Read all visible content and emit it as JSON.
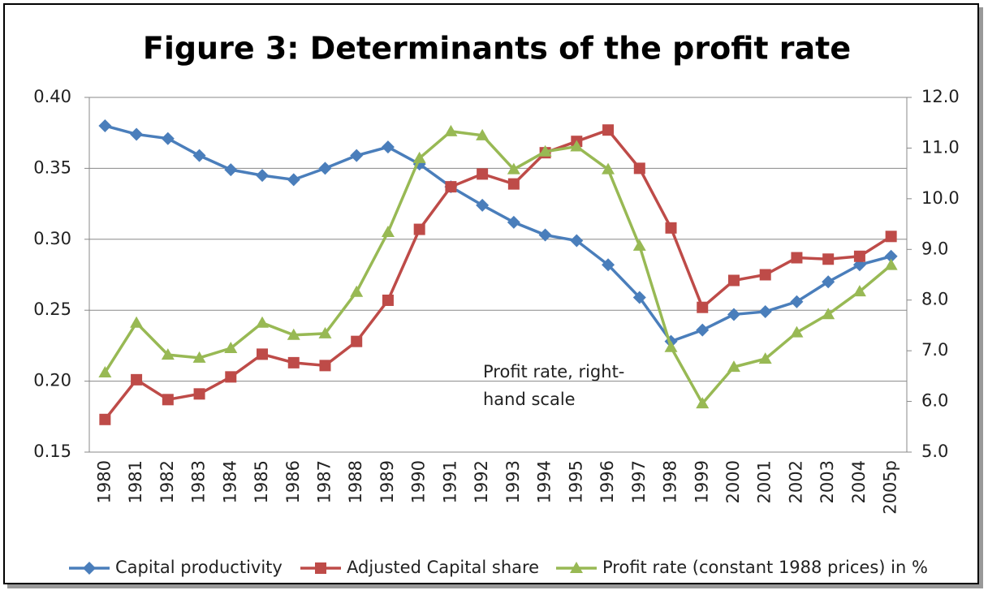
{
  "chart_data": {
    "type": "line",
    "title": "Figure 3: Determinants of the profit rate",
    "categories": [
      "1980",
      "1981",
      "1982",
      "1983",
      "1984",
      "1985",
      "1986",
      "1987",
      "1988",
      "1989",
      "1990",
      "1991",
      "1992",
      "1993",
      "1994",
      "1995",
      "1996",
      "1997",
      "1998",
      "1999",
      "2000",
      "2001",
      "2002",
      "2003",
      "2004",
      "2005p"
    ],
    "series": [
      {
        "name": "Capital productivity",
        "color": "#4a7ebb",
        "marker": "diamond",
        "values": [
          0.38,
          0.374,
          0.371,
          0.359,
          0.349,
          0.345,
          0.342,
          0.35,
          0.359,
          0.365,
          0.353,
          0.337,
          0.324,
          0.312,
          0.303,
          0.299,
          0.282,
          0.259,
          0.228,
          0.236,
          0.247,
          0.249,
          0.256,
          0.27,
          0.282,
          0.288
        ]
      },
      {
        "name": "Adjusted Capital share",
        "color": "#be4b48",
        "marker": "square",
        "values": [
          0.173,
          0.201,
          0.187,
          0.191,
          0.203,
          0.219,
          0.213,
          0.211,
          0.228,
          0.257,
          0.307,
          0.337,
          0.346,
          0.339,
          0.361,
          0.369,
          0.377,
          0.35,
          0.308,
          0.252,
          0.271,
          0.275,
          0.287,
          0.286,
          0.288,
          0.302
        ]
      },
      {
        "name": "Profit rate (constant 1988 prices) in %",
        "color": "#98b954",
        "marker": "triangle",
        "axis": "y2",
        "values": [
          6.57,
          7.55,
          6.92,
          6.86,
          7.05,
          7.55,
          7.31,
          7.34,
          8.16,
          9.34,
          10.8,
          11.33,
          11.25,
          10.58,
          10.93,
          11.03,
          10.58,
          9.07,
          7.07,
          5.96,
          6.68,
          6.84,
          7.36,
          7.72,
          8.17,
          8.69
        ]
      }
    ],
    "ylim": [
      0.15,
      0.4
    ],
    "yticks": [
      0.15,
      {
        "value": 0.2,
        "label": "0.20"
      },
      0.25,
      {
        "value": 0.3,
        "label": "0.30"
      },
      0.35,
      {
        "value": 0.4,
        "label": "0.40"
      }
    ],
    "y2lim": [
      5,
      12
    ],
    "y2ticks": [
      {
        "value": 5,
        "label": "5.0"
      },
      {
        "value": 6,
        "label": "6.0"
      },
      {
        "value": 7,
        "label": "7.0"
      },
      {
        "value": 8,
        "label": "8.0"
      },
      {
        "value": 9,
        "label": "9.0"
      },
      {
        "value": 10,
        "label": "10.0"
      },
      {
        "value": 11,
        "label": "11.0"
      },
      {
        "value": 12,
        "label": "12.0"
      }
    ],
    "grid": true,
    "legend": "bottom",
    "annotation": [
      "Profit rate, right-",
      "hand scale"
    ]
  }
}
